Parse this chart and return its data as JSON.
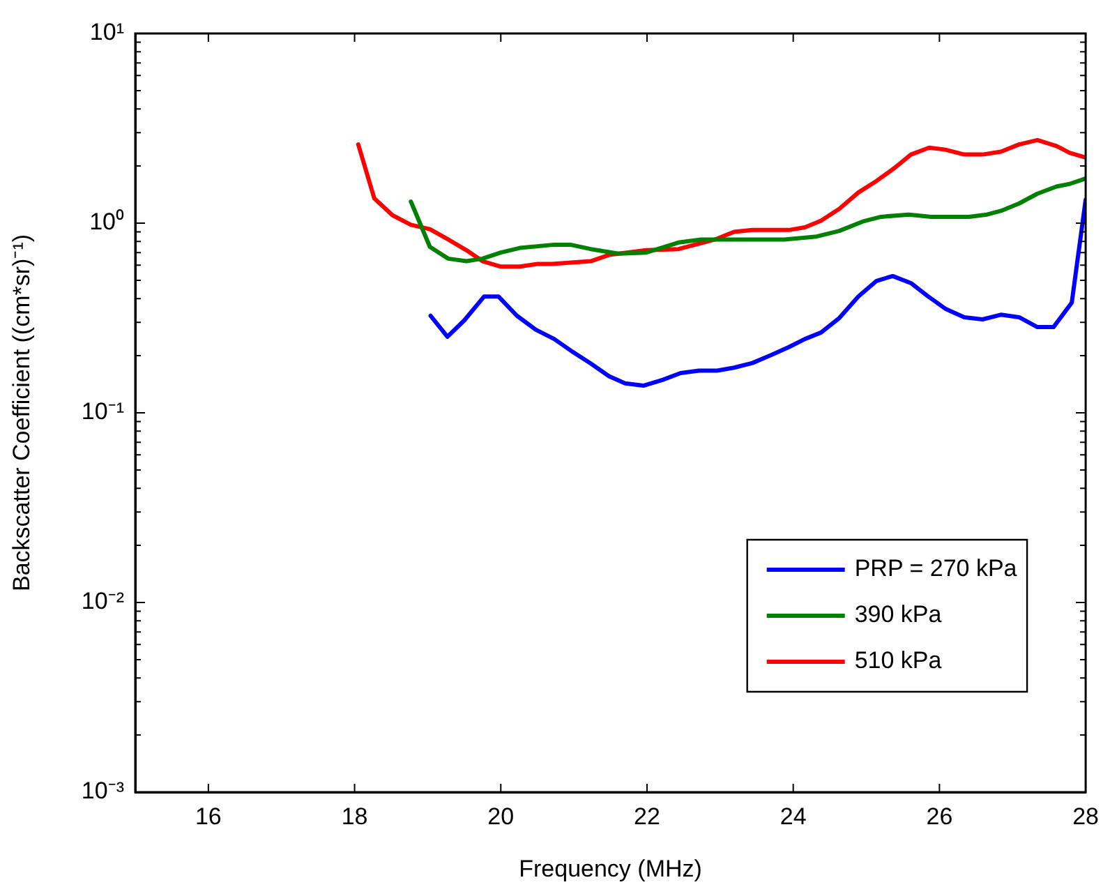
{
  "chart_data": {
    "type": "line",
    "xlabel": "Frequency (MHz)",
    "ylabel": "Backscatter Coefficient ((cm*sr)⁻¹)",
    "xlim": [
      15,
      28
    ],
    "xticks": [
      16,
      18,
      20,
      22,
      24,
      26,
      28
    ],
    "ylim": [
      0.001,
      10
    ],
    "log": "y",
    "yticks": [
      {
        "value": 0.001,
        "label": "10⁻³"
      },
      {
        "value": 0.002,
        "label": null
      },
      {
        "value": 0.003,
        "label": null
      },
      {
        "value": 0.004,
        "label": null
      },
      {
        "value": 0.005,
        "label": null
      },
      {
        "value": 0.006,
        "label": null
      },
      {
        "value": 0.007,
        "label": null
      },
      {
        "value": 0.008,
        "label": null
      },
      {
        "value": 0.009,
        "label": null
      },
      {
        "value": 0.01,
        "label": "10⁻²"
      },
      {
        "value": 0.02,
        "label": null
      },
      {
        "value": 0.03,
        "label": null
      },
      {
        "value": 0.04,
        "label": null
      },
      {
        "value": 0.05,
        "label": null
      },
      {
        "value": 0.06,
        "label": null
      },
      {
        "value": 0.07,
        "label": null
      },
      {
        "value": 0.08,
        "label": null
      },
      {
        "value": 0.09,
        "label": null
      },
      {
        "value": 0.1,
        "label": "10⁻¹"
      },
      {
        "value": 0.2,
        "label": null
      },
      {
        "value": 0.3,
        "label": null
      },
      {
        "value": 0.4,
        "label": null
      },
      {
        "value": 0.5,
        "label": null
      },
      {
        "value": 0.6,
        "label": null
      },
      {
        "value": 0.7,
        "label": null
      },
      {
        "value": 0.8,
        "label": null
      },
      {
        "value": 0.9,
        "label": null
      },
      {
        "value": 1,
        "label": "10⁰"
      },
      {
        "value": 2,
        "label": null
      },
      {
        "value": 3,
        "label": null
      },
      {
        "value": 4,
        "label": null
      },
      {
        "value": 5,
        "label": null
      },
      {
        "value": 6,
        "label": null
      },
      {
        "value": 7,
        "label": null
      },
      {
        "value": 8,
        "label": null
      },
      {
        "value": 9,
        "label": null
      },
      {
        "value": 10,
        "label": "10¹"
      }
    ],
    "grid": false,
    "legend": "bottom right",
    "marker": "none",
    "line_style": "solid",
    "series": [
      {
        "name": "PRP = 270 kPa",
        "color": "#0000ff",
        "x": [
          19.04,
          19.27,
          19.5,
          19.77,
          19.97,
          20.22,
          20.48,
          20.73,
          20.98,
          21.23,
          21.48,
          21.7,
          21.95,
          22.21,
          22.46,
          22.71,
          22.96,
          23.19,
          23.44,
          23.69,
          23.94,
          24.16,
          24.38,
          24.63,
          24.89,
          25.14,
          25.36,
          25.61,
          25.83,
          26.08,
          26.34,
          26.59,
          26.84,
          27.09,
          27.34,
          27.56,
          27.81,
          28.0
        ],
        "values": [
          0.325,
          0.252,
          0.307,
          0.41,
          0.41,
          0.325,
          0.274,
          0.245,
          0.21,
          0.182,
          0.156,
          0.143,
          0.139,
          0.149,
          0.162,
          0.167,
          0.167,
          0.173,
          0.183,
          0.201,
          0.222,
          0.245,
          0.265,
          0.316,
          0.41,
          0.496,
          0.526,
          0.483,
          0.415,
          0.354,
          0.319,
          0.311,
          0.329,
          0.319,
          0.283,
          0.283,
          0.381,
          1.33
        ]
      },
      {
        "name": "390 kPa",
        "color": "#008000",
        "x": [
          18.77,
          19.03,
          19.28,
          19.53,
          19.75,
          20.0,
          20.26,
          20.73,
          20.95,
          21.23,
          21.61,
          21.99,
          22.43,
          22.74,
          23.88,
          24.32,
          24.63,
          24.95,
          25.2,
          25.58,
          25.89,
          26.4,
          26.65,
          26.84,
          27.09,
          27.34,
          27.6,
          27.78,
          28.0
        ],
        "values": [
          1.3,
          0.75,
          0.65,
          0.63,
          0.65,
          0.7,
          0.74,
          0.77,
          0.77,
          0.73,
          0.69,
          0.7,
          0.79,
          0.82,
          0.82,
          0.85,
          0.91,
          1.02,
          1.08,
          1.11,
          1.08,
          1.08,
          1.11,
          1.16,
          1.27,
          1.43,
          1.56,
          1.61,
          1.72
        ]
      },
      {
        "name": "510 kPa",
        "color": "#ff0000",
        "x": [
          18.05,
          18.27,
          18.52,
          18.77,
          19.03,
          19.28,
          19.53,
          19.75,
          20.0,
          20.26,
          20.51,
          20.7,
          21.23,
          21.48,
          21.99,
          22.43,
          22.93,
          23.19,
          23.44,
          23.94,
          24.16,
          24.38,
          24.63,
          24.89,
          25.14,
          25.39,
          25.61,
          25.86,
          26.08,
          26.34,
          26.59,
          26.84,
          27.09,
          27.34,
          27.6,
          27.78,
          28.0
        ],
        "values": [
          2.6,
          1.35,
          1.1,
          0.98,
          0.93,
          0.82,
          0.72,
          0.63,
          0.59,
          0.59,
          0.61,
          0.61,
          0.63,
          0.68,
          0.72,
          0.73,
          0.82,
          0.9,
          0.92,
          0.92,
          0.95,
          1.03,
          1.19,
          1.45,
          1.67,
          1.96,
          2.3,
          2.5,
          2.44,
          2.3,
          2.3,
          2.38,
          2.6,
          2.74,
          2.55,
          2.35,
          2.22
        ]
      }
    ]
  }
}
